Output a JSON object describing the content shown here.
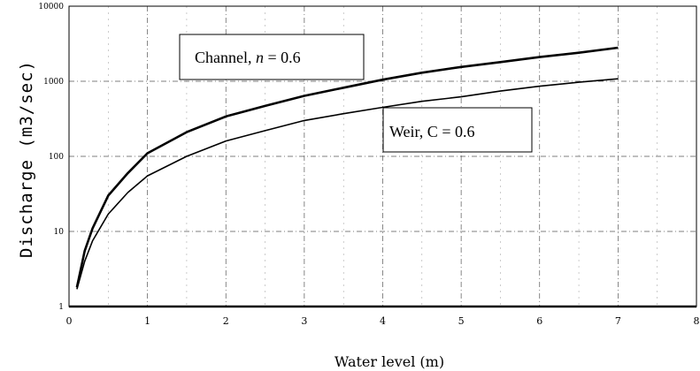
{
  "chart_data": {
    "type": "line",
    "xlabel": "Water level (m)",
    "ylabel": "Discharge (m3/sec)",
    "xlim": [
      0,
      8
    ],
    "ylim": [
      1,
      10000
    ],
    "y_scale": "log",
    "x_ticks": [
      "0",
      "1",
      "2",
      "3",
      "4",
      "5",
      "6",
      "7",
      "8"
    ],
    "y_ticks": [
      "1",
      "10",
      "100",
      "1000",
      "10000"
    ],
    "grid": true,
    "series": [
      {
        "name": "Channel, n = 0.6",
        "color": "#000000",
        "x": [
          0.1,
          0.2,
          0.3,
          0.5,
          0.75,
          1,
          1.5,
          2,
          2.5,
          3,
          3.5,
          4,
          4.5,
          5,
          5.5,
          6,
          6.5,
          7
        ],
        "y": [
          1.8,
          5.5,
          11,
          30,
          60,
          110,
          210,
          340,
          470,
          640,
          820,
          1050,
          1300,
          1550,
          1800,
          2100,
          2400,
          2800
        ]
      },
      {
        "name": "Weir, C = 0.6",
        "color": "#000000",
        "x": [
          0.1,
          0.2,
          0.3,
          0.5,
          0.75,
          1,
          1.5,
          2,
          2.5,
          3,
          3.5,
          4,
          4.5,
          5,
          5.5,
          6,
          6.5,
          7
        ],
        "y": [
          1.7,
          4,
          7.5,
          17,
          33,
          55,
          100,
          160,
          220,
          300,
          370,
          450,
          540,
          620,
          740,
          860,
          970,
          1080
        ]
      }
    ],
    "annotations": [
      {
        "text": "Channel, n = 0.6",
        "prefix": "Channel, ",
        "var": "n",
        "suffix": " = 0.6"
      },
      {
        "text": "Weir, C = 0.6"
      }
    ]
  }
}
